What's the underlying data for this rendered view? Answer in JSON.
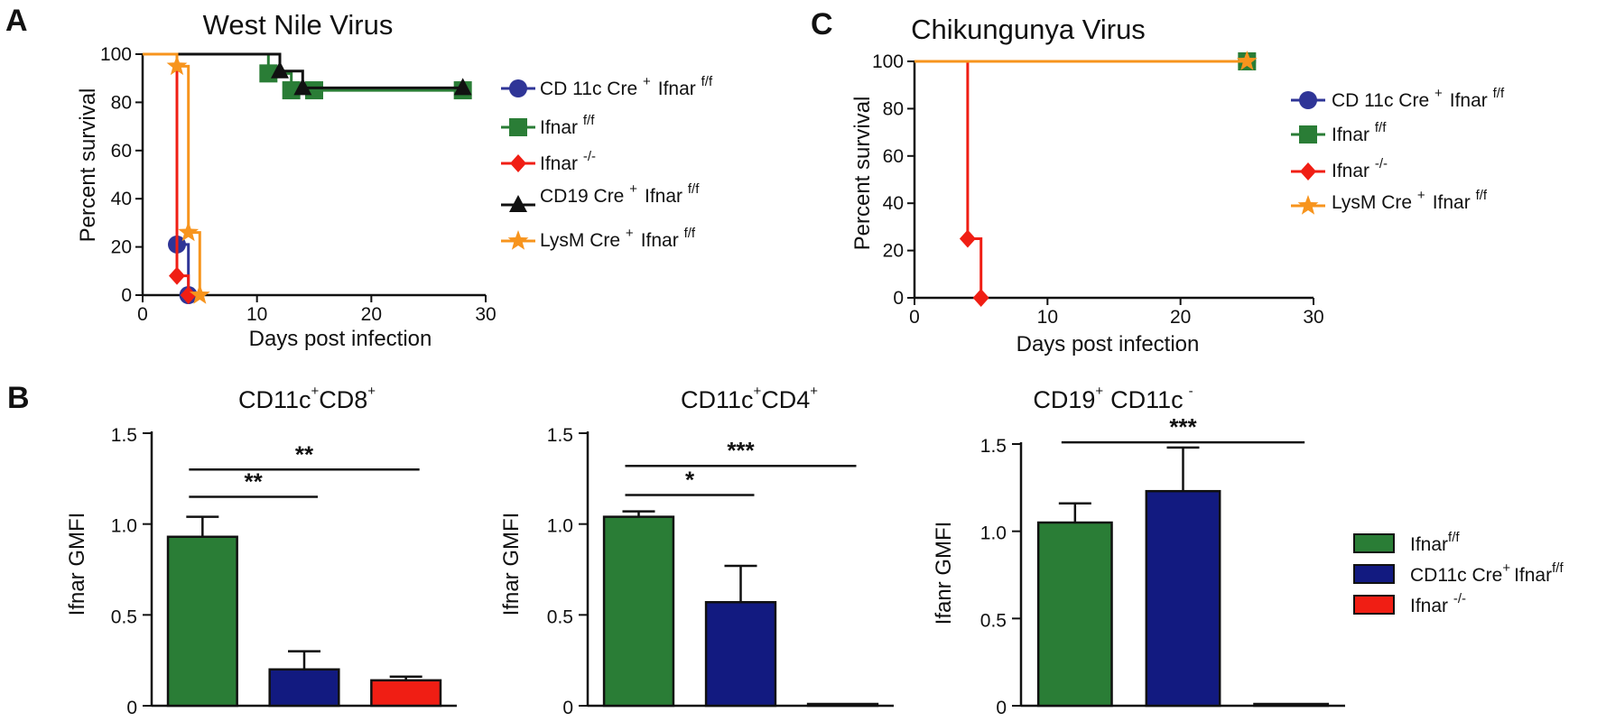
{
  "panels": {
    "A": "A",
    "B": "B",
    "C": "C"
  },
  "legend_ac": {
    "cd11c": {
      "label": "CD 11c Cre",
      "sup1": "+",
      "suffix": "Ifnar",
      "sup2": "f/f"
    },
    "fl": {
      "label": "Ifnar",
      "sup": "f/f"
    },
    "ko": {
      "label": "Ifnar",
      "sup": "-/-"
    },
    "cd19": {
      "label": "CD19 Cre",
      "sup1": "+",
      "suffix": "Ifnar",
      "sup2": "f/f"
    },
    "lysm": {
      "label": "LysM Cre",
      "sup1": "+",
      "suffix": "Ifnar",
      "sup2": "f/f"
    }
  },
  "legend_b": {
    "fl": {
      "label": "Ifnar",
      "sup": "f/f"
    },
    "cd11c": {
      "label": "CD11c Cre",
      "sup1": "+",
      "suffix": "Ifnar",
      "sup2": "f/f"
    },
    "ko": {
      "label": "Ifnar",
      "sup": "-/-"
    }
  },
  "colors": {
    "green": "#2a7d36",
    "blue": "#2f3597",
    "navy": "#121a80",
    "red": "#f01e14",
    "black": "#111111",
    "orange": "#f7941d"
  },
  "chart_data": [
    {
      "type": "line",
      "subtype": "kaplan-meier",
      "title": "West Nile Virus",
      "xlabel": "Days post infection",
      "ylabel": "Percent survival",
      "xlim": [
        0,
        30
      ],
      "ylim": [
        0,
        100
      ],
      "xticks": [
        "0",
        "10",
        "20",
        "30"
      ],
      "yticks": [
        "0",
        "20",
        "40",
        "60",
        "80",
        "100"
      ],
      "series": [
        {
          "key": "cd11c",
          "color": "#2f3597",
          "marker": "circle",
          "x": [
            0,
            3,
            4
          ],
          "y": [
            100,
            21,
            0
          ]
        },
        {
          "key": "fl",
          "color": "#2a7d36",
          "marker": "square",
          "x": [
            0,
            11,
            13,
            15,
            28
          ],
          "y": [
            100,
            92,
            85,
            85,
            85
          ]
        },
        {
          "key": "ko",
          "color": "#f01e14",
          "marker": "diamond",
          "x": [
            0,
            3,
            4
          ],
          "y": [
            100,
            8,
            0
          ]
        },
        {
          "key": "cd19",
          "color": "#111111",
          "marker": "triangle",
          "x": [
            0,
            12,
            14,
            28
          ],
          "y": [
            100,
            93,
            86,
            86
          ]
        },
        {
          "key": "lysm",
          "color": "#f7941d",
          "marker": "star",
          "x": [
            0,
            3,
            4,
            5
          ],
          "y": [
            100,
            95,
            26,
            0
          ]
        }
      ]
    },
    {
      "type": "bar",
      "title": "CD11c",
      "title_parts": [
        "CD11c",
        "+",
        "CD8",
        "+"
      ],
      "ylabel": "Ifnar GMFI",
      "ylim": [
        0,
        1.5
      ],
      "yticks": [
        "0",
        "0.5",
        "1.0",
        "1.5"
      ],
      "categories": [
        "Ifnar f/f",
        "CD11c Cre+ Ifnar f/f",
        "Ifnar -/-"
      ],
      "values": [
        0.93,
        0.2,
        0.14
      ],
      "errors": [
        0.11,
        0.1,
        0.02
      ],
      "brackets": [
        {
          "from": 0,
          "to": 1,
          "y": 1.15,
          "label": "**"
        },
        {
          "from": 0,
          "to": 2,
          "y": 1.3,
          "label": "**"
        }
      ]
    },
    {
      "type": "bar",
      "title": "CD11c",
      "title_parts": [
        "CD11c",
        "+",
        "CD4",
        "+"
      ],
      "ylabel": "Ifnar GMFI",
      "ylim": [
        0,
        1.5
      ],
      "yticks": [
        "0",
        "0.5",
        "1.0",
        "1.5"
      ],
      "categories": [
        "Ifnar f/f",
        "CD11c Cre+ Ifnar f/f",
        "Ifnar -/-"
      ],
      "values": [
        1.04,
        0.57,
        0.01
      ],
      "errors": [
        0.03,
        0.2,
        0.0
      ],
      "brackets": [
        {
          "from": 0,
          "to": 1,
          "y": 1.16,
          "label": "*"
        },
        {
          "from": 0,
          "to": 2,
          "y": 1.32,
          "label": "***"
        }
      ]
    },
    {
      "type": "bar",
      "title": "CD19",
      "title_parts": [
        "CD19",
        "+",
        "CD11c",
        "-"
      ],
      "ylabel": "Ifanr GMFI",
      "ylim": [
        0,
        1.5
      ],
      "yticks": [
        "0",
        "0.5",
        "1.0",
        "1.5"
      ],
      "categories": [
        "Ifnar f/f",
        "CD11c Cre+ Ifnar f/f",
        "Ifnar -/-"
      ],
      "values": [
        1.05,
        1.23,
        0.01
      ],
      "errors": [
        0.11,
        0.25,
        0.0
      ],
      "brackets": [
        {
          "from": 0,
          "to": 2,
          "y": 1.51,
          "label": "***"
        }
      ]
    },
    {
      "type": "line",
      "subtype": "kaplan-meier",
      "title": "Chikungunya Virus",
      "xlabel": "Days post infection",
      "ylabel": "Percent survival",
      "xlim": [
        0,
        30
      ],
      "ylim": [
        0,
        100
      ],
      "xticks": [
        "0",
        "10",
        "20",
        "30"
      ],
      "yticks": [
        "0",
        "20",
        "40",
        "60",
        "80",
        "100"
      ],
      "series": [
        {
          "key": "cd11c",
          "color": "#2f3597",
          "marker": "circle",
          "x": [
            0,
            25
          ],
          "y": [
            100,
            100
          ]
        },
        {
          "key": "fl",
          "color": "#2a7d36",
          "marker": "square",
          "x": [
            0,
            25
          ],
          "y": [
            100,
            100
          ]
        },
        {
          "key": "ko",
          "color": "#f01e14",
          "marker": "diamond",
          "x": [
            0,
            4,
            5
          ],
          "y": [
            100,
            25,
            0
          ]
        },
        {
          "key": "lysm",
          "color": "#f7941d",
          "marker": "star",
          "x": [
            0,
            25
          ],
          "y": [
            100,
            100
          ]
        }
      ]
    }
  ]
}
